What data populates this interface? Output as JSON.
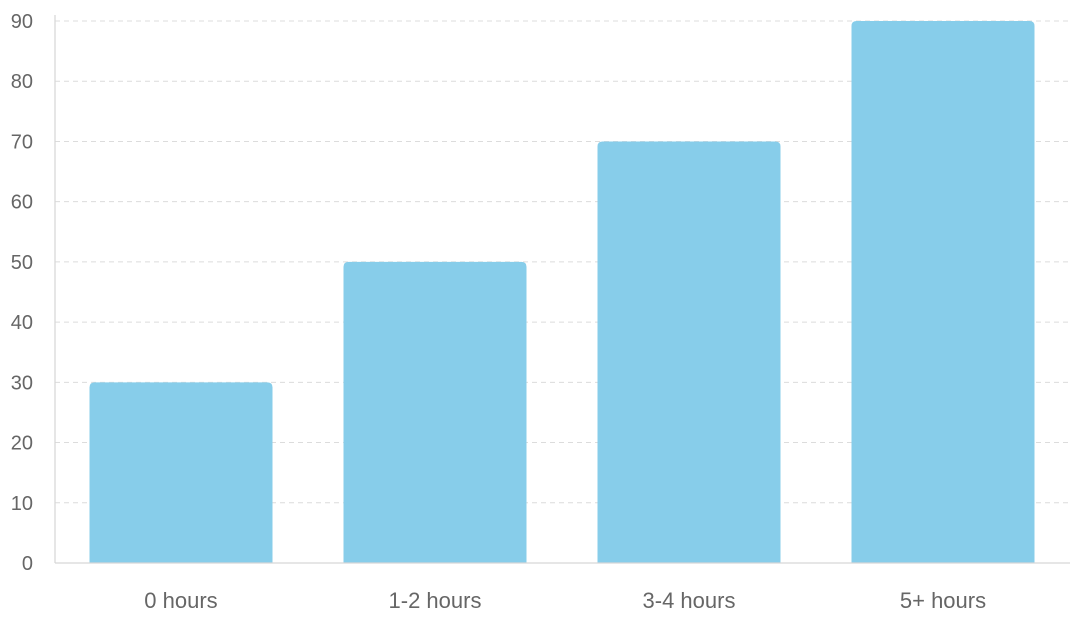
{
  "chart_data": {
    "type": "bar",
    "title": "",
    "xlabel": "",
    "ylabel": "",
    "categories": [
      "0 hours",
      "1-2 hours",
      "3-4 hours",
      "5+ hours"
    ],
    "values": [
      30,
      50,
      70,
      90
    ],
    "ylim": [
      0,
      90
    ],
    "yticks": [
      0,
      10,
      20,
      30,
      40,
      50,
      60,
      70,
      80,
      90
    ],
    "grid": true,
    "legend": "none",
    "bar_color": "#87CDEA"
  }
}
